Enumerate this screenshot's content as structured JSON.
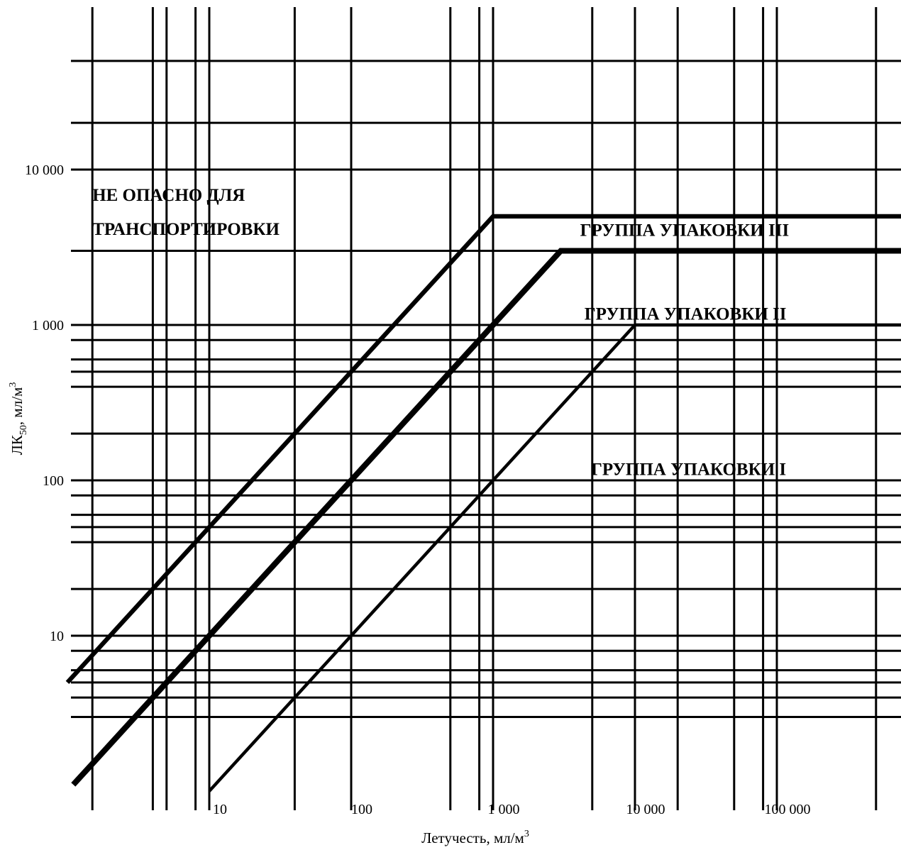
{
  "chart_data": {
    "type": "line",
    "x_scale": "log",
    "y_scale": "log",
    "xlim": [
      1,
      1000000
    ],
    "ylim": [
      1,
      100000
    ],
    "grid": true,
    "xlabel": "Летучесть, мл/м",
    "xlabel_sup": "3",
    "ylabel": "ЛК",
    "ylabel_sub": "50",
    "ylabel_suffix": ", мл/м",
    "ylabel_sup": "3",
    "x_ticks": [
      {
        "value": 10,
        "label": "10"
      },
      {
        "value": 100,
        "label": "100"
      },
      {
        "value": 1000,
        "label": "1 000"
      },
      {
        "value": 10000,
        "label": "10 000"
      },
      {
        "value": 100000,
        "label": "100 000"
      }
    ],
    "y_ticks": [
      {
        "value": 10,
        "label": "10"
      },
      {
        "value": 100,
        "label": "100"
      },
      {
        "value": 1000,
        "label": "1 000"
      },
      {
        "value": 10000,
        "label": "10 000"
      }
    ],
    "x_gridlines": [
      1.5,
      4,
      5,
      8,
      10,
      40,
      100,
      500,
      800,
      1000,
      5000,
      10000,
      20000,
      50000,
      80000,
      100000,
      500000
    ],
    "y_gridlines": [
      3,
      4,
      5,
      6,
      8,
      10,
      20,
      40,
      50,
      60,
      80,
      100,
      200,
      400,
      500,
      600,
      800,
      1000,
      3000,
      10000,
      20000,
      50000
    ],
    "series": [
      {
        "points": [
          [
            1,
            5
          ],
          [
            1000,
            5000
          ],
          [
            1000000,
            5000
          ]
        ],
        "stroke_weight": 1.4
      },
      {
        "points": [
          [
            1.1,
            1.1
          ],
          [
            3000,
            3000
          ],
          [
            1000000,
            3000
          ]
        ],
        "stroke_weight": 1.8
      },
      {
        "points": [
          [
            10,
            1
          ],
          [
            10000,
            1000
          ],
          [
            1000000,
            1000
          ]
        ],
        "stroke_weight": 1.0
      }
    ],
    "annotations": [
      {
        "text": "НЕ ОПАСНО ДЛЯ",
        "x": 1.5,
        "y": 6300
      },
      {
        "text": "ТРАНСПОРТИРОВКИ",
        "x": 1.5,
        "y": 3800
      },
      {
        "text": "ГРУППА УПАКОВКИ III",
        "x": 4100,
        "y": 3750
      },
      {
        "text": "ГРУППА УПАКОВКИ II",
        "x": 4400,
        "y": 1080
      },
      {
        "text": "ГРУППА УПАКОВКИ I",
        "x": 4900,
        "y": 108
      }
    ]
  }
}
